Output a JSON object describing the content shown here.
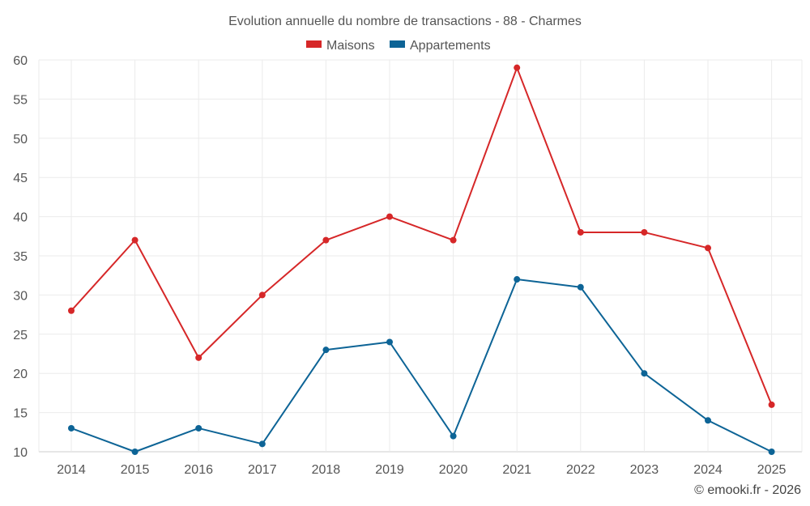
{
  "chart_data": {
    "type": "line",
    "title": "Evolution annuelle du nombre de transactions - 88 - Charmes",
    "categories": [
      "2014",
      "2015",
      "2016",
      "2017",
      "2018",
      "2019",
      "2020",
      "2021",
      "2022",
      "2023",
      "2024",
      "2025"
    ],
    "series": [
      {
        "name": "Maisons",
        "color": "#d62728",
        "values": [
          28,
          37,
          22,
          30,
          37,
          40,
          37,
          59,
          38,
          38,
          36,
          16
        ]
      },
      {
        "name": "Appartements",
        "color": "#0d6496",
        "values": [
          13,
          10,
          13,
          11,
          23,
          24,
          12,
          32,
          31,
          20,
          14,
          10
        ]
      }
    ],
    "ylim": [
      10,
      60
    ],
    "yticks": [
      10,
      15,
      20,
      25,
      30,
      35,
      40,
      45,
      50,
      55,
      60
    ],
    "xlabel": "",
    "ylabel": "",
    "grid": true,
    "legend_position": "top-center"
  },
  "credit": "© emooki.fr - 2026"
}
